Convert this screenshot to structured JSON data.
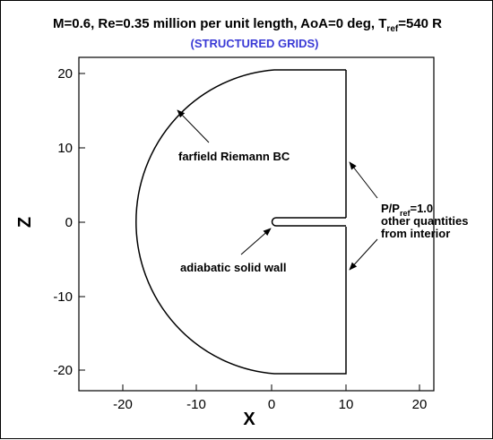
{
  "title": {
    "prefix": "M=0.6, Re=0.35 million per unit length, AoA=0 deg, T",
    "sub": "ref",
    "suffix": "=540 R"
  },
  "subtitle": "(STRUCTURED GRIDS)",
  "axes": {
    "xlabel": "X",
    "ylabel": "Z",
    "xlim": [
      -28,
      22
    ],
    "ylim": [
      -23,
      23
    ],
    "xticks": [
      "-20",
      "-10",
      "0",
      "10",
      "20"
    ],
    "yticks": [
      "20",
      "10",
      "0",
      "-10",
      "-20"
    ]
  },
  "annotations": {
    "farfield": "farfield Riemann BC",
    "wall": "adiabatic solid wall",
    "outflow_line1_prefix": "P/P",
    "outflow_line1_sub": "ref",
    "outflow_line1_suffix": "=1.0",
    "outflow_line2": "other quantities",
    "outflow_line3": "from interior"
  },
  "colors": {
    "subtitle": "#3a3ad6",
    "lines": "#000000"
  }
}
